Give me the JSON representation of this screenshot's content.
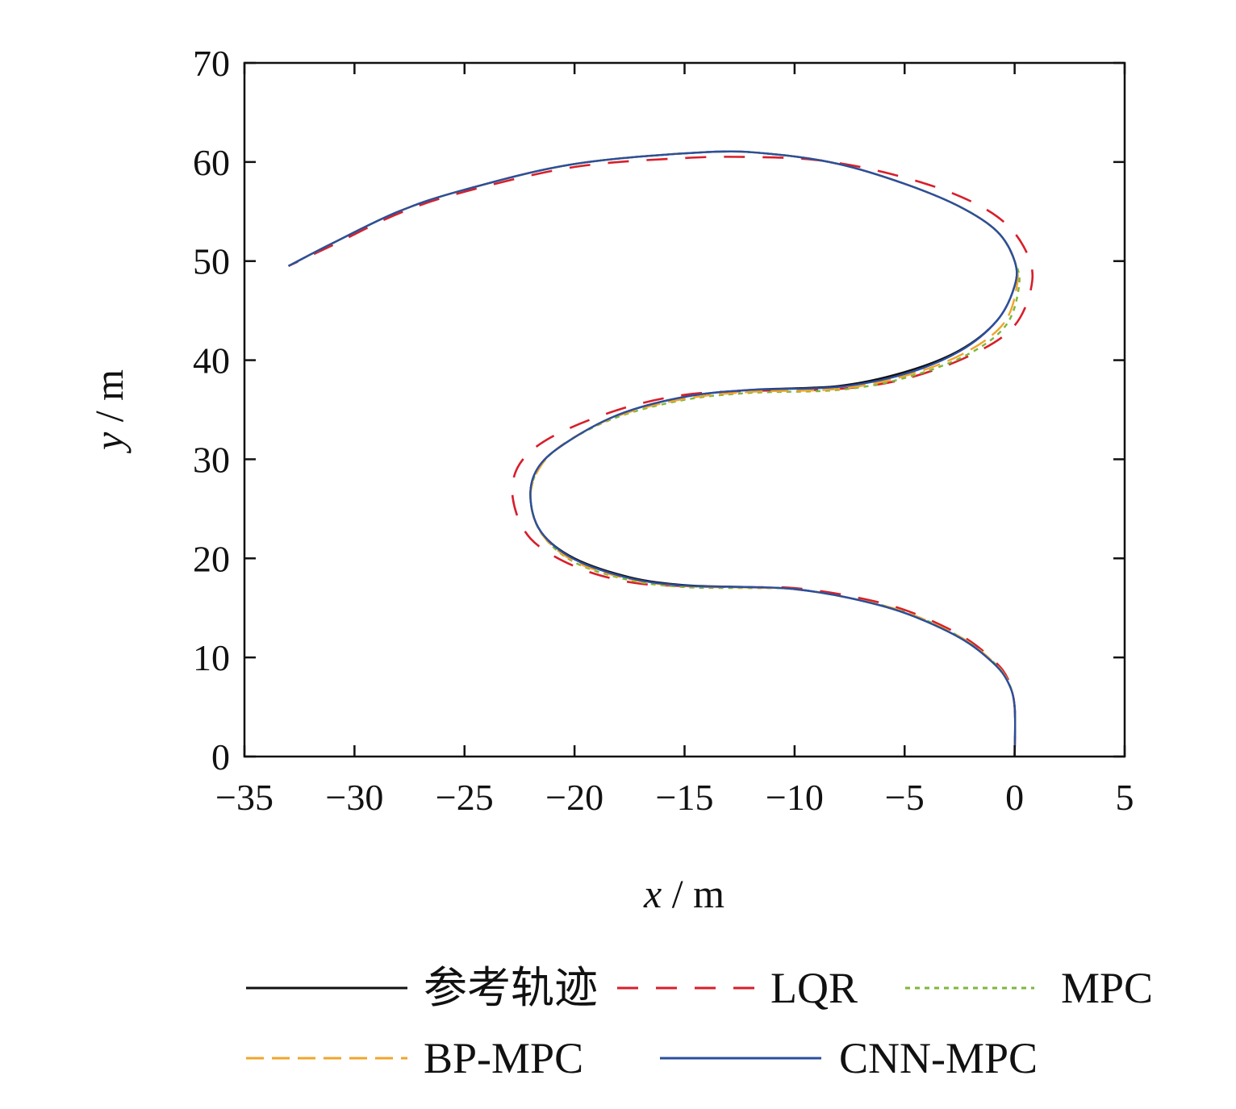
{
  "chart_data": {
    "type": "line",
    "title": "",
    "xlabel_var": "x",
    "xlabel_unit": " / m",
    "ylabel_var": "y",
    "ylabel_unit": " / m",
    "xlim": [
      -35,
      5
    ],
    "ylim": [
      0,
      70
    ],
    "xticks": [
      -35,
      -30,
      -25,
      -20,
      -15,
      -10,
      -5,
      0,
      5
    ],
    "xtick_labels": [
      "−35",
      "−30",
      "−25",
      "−20",
      "−15",
      "−10",
      "−5",
      "0",
      "5"
    ],
    "yticks": [
      0,
      10,
      20,
      30,
      40,
      50,
      60,
      70
    ],
    "ytick_labels": [
      "0",
      "10",
      "20",
      "30",
      "40",
      "50",
      "60",
      "70"
    ],
    "grid": false,
    "legend_position": "bottom",
    "series": [
      {
        "name": "参考轨迹",
        "color": "#111111",
        "dash": "",
        "points": [
          [
            0,
            0
          ],
          [
            0,
            5
          ],
          [
            -0.3,
            7.5
          ],
          [
            -1,
            9.5
          ],
          [
            -2.5,
            12
          ],
          [
            -5,
            14.5
          ],
          [
            -7.5,
            16
          ],
          [
            -10,
            16.9
          ],
          [
            -12,
            17.1
          ],
          [
            -15,
            17.3
          ],
          [
            -17.5,
            18.1
          ],
          [
            -20,
            20
          ],
          [
            -21.5,
            22.6
          ],
          [
            -22,
            26
          ],
          [
            -21.7,
            29
          ],
          [
            -20.5,
            31.5
          ],
          [
            -18,
            34.5
          ],
          [
            -15,
            36.3
          ],
          [
            -12,
            37
          ],
          [
            -8,
            37.4
          ],
          [
            -5,
            38.8
          ],
          [
            -2.5,
            41
          ],
          [
            -0.8,
            44
          ],
          [
            0,
            47.5
          ],
          [
            0,
            50
          ],
          [
            -0.8,
            53
          ],
          [
            -2.5,
            55.5
          ],
          [
            -5,
            57.8
          ],
          [
            -8,
            59.8
          ],
          [
            -11,
            60.8
          ],
          [
            -14,
            61
          ],
          [
            -20,
            59.8
          ],
          [
            -25,
            57.2
          ],
          [
            -28,
            55
          ],
          [
            -31,
            51.8
          ],
          [
            -33,
            49.5
          ]
        ]
      },
      {
        "name": "LQR",
        "color": "#d81e2a",
        "dash": "26,22",
        "points": [
          [
            0,
            0
          ],
          [
            0,
            5
          ],
          [
            -0.3,
            7.8
          ],
          [
            -1,
            9.8
          ],
          [
            -2.5,
            12.3
          ],
          [
            -5,
            14.8
          ],
          [
            -7.5,
            16.2
          ],
          [
            -10,
            17
          ],
          [
            -12,
            17.1
          ],
          [
            -15,
            17.2
          ],
          [
            -17.5,
            17.6
          ],
          [
            -20,
            19.2
          ],
          [
            -22,
            22
          ],
          [
            -22.8,
            26
          ],
          [
            -22.5,
            29.5
          ],
          [
            -21,
            32.3
          ],
          [
            -18,
            35
          ],
          [
            -15,
            36.5
          ],
          [
            -12,
            36.9
          ],
          [
            -8,
            37.1
          ],
          [
            -5,
            38.1
          ],
          [
            -2,
            40.5
          ],
          [
            0,
            43.5
          ],
          [
            0.8,
            48
          ],
          [
            0.4,
            51.5
          ],
          [
            -0.8,
            54.5
          ],
          [
            -3,
            57
          ],
          [
            -6,
            59
          ],
          [
            -9,
            60.2
          ],
          [
            -12,
            60.5
          ],
          [
            -15,
            60.4
          ],
          [
            -20,
            59.5
          ],
          [
            -25,
            57
          ],
          [
            -28,
            54.8
          ],
          [
            -31,
            51.6
          ],
          [
            -33,
            49.5
          ]
        ]
      },
      {
        "name": "MPC",
        "color": "#7cb73a",
        "dash": "6,6",
        "points": [
          [
            0,
            0
          ],
          [
            0,
            5
          ],
          [
            -0.3,
            7.6
          ],
          [
            -1,
            9.6
          ],
          [
            -2.5,
            12.1
          ],
          [
            -5,
            14.6
          ],
          [
            -7.5,
            16
          ],
          [
            -10,
            16.9
          ],
          [
            -12,
            17
          ],
          [
            -15,
            17.1
          ],
          [
            -17.5,
            17.8
          ],
          [
            -20,
            19.6
          ],
          [
            -21.5,
            22.5
          ],
          [
            -22,
            26
          ],
          [
            -21.6,
            29.2
          ],
          [
            -20.3,
            31.8
          ],
          [
            -18,
            34.3
          ],
          [
            -15,
            36
          ],
          [
            -12,
            36.7
          ],
          [
            -8,
            37
          ],
          [
            -5,
            38.2
          ],
          [
            -2.2,
            40.5
          ],
          [
            -0.4,
            43.5
          ],
          [
            0.2,
            47.5
          ],
          [
            0,
            50
          ],
          [
            -0.8,
            53
          ],
          [
            -2.5,
            55.5
          ],
          [
            -5,
            57.8
          ],
          [
            -8,
            59.8
          ],
          [
            -11,
            60.8
          ],
          [
            -14,
            61
          ],
          [
            -20,
            59.8
          ],
          [
            -25,
            57.2
          ],
          [
            -28,
            55
          ],
          [
            -31,
            51.8
          ],
          [
            -33,
            49.5
          ]
        ]
      },
      {
        "name": "BP-MPC",
        "color": "#f0a52a",
        "dash": "22,10",
        "points": [
          [
            0,
            0
          ],
          [
            0,
            5
          ],
          [
            -0.3,
            7.6
          ],
          [
            -1,
            9.6
          ],
          [
            -2.5,
            12.1
          ],
          [
            -5,
            14.6
          ],
          [
            -7.5,
            16
          ],
          [
            -10,
            16.9
          ],
          [
            -12,
            17.05
          ],
          [
            -15,
            17.2
          ],
          [
            -17.5,
            17.9
          ],
          [
            -20,
            19.7
          ],
          [
            -21.5,
            22.5
          ],
          [
            -22,
            26
          ],
          [
            -21.6,
            29.1
          ],
          [
            -20.4,
            31.7
          ],
          [
            -18,
            34.4
          ],
          [
            -15,
            36.1
          ],
          [
            -12,
            36.8
          ],
          [
            -8,
            37.1
          ],
          [
            -5,
            38.4
          ],
          [
            -2.3,
            40.7
          ],
          [
            -0.5,
            43.7
          ],
          [
            0.1,
            47.5
          ],
          [
            0,
            50
          ],
          [
            -0.8,
            53
          ],
          [
            -2.5,
            55.5
          ],
          [
            -5,
            57.8
          ],
          [
            -8,
            59.8
          ],
          [
            -11,
            60.8
          ],
          [
            -14,
            61
          ],
          [
            -20,
            59.8
          ],
          [
            -25,
            57.2
          ],
          [
            -28,
            55
          ],
          [
            -31,
            51.8
          ],
          [
            -33,
            49.5
          ]
        ]
      },
      {
        "name": "CNN-MPC",
        "color": "#2b4f9e",
        "dash": "",
        "points": [
          [
            0,
            0
          ],
          [
            0,
            5
          ],
          [
            -0.3,
            7.5
          ],
          [
            -1,
            9.5
          ],
          [
            -2.5,
            12
          ],
          [
            -5,
            14.5
          ],
          [
            -7.5,
            16
          ],
          [
            -10,
            16.9
          ],
          [
            -12,
            17.1
          ],
          [
            -15,
            17.25
          ],
          [
            -17.5,
            18
          ],
          [
            -20,
            19.9
          ],
          [
            -21.5,
            22.6
          ],
          [
            -22,
            26
          ],
          [
            -21.7,
            29
          ],
          [
            -20.5,
            31.5
          ],
          [
            -18,
            34.5
          ],
          [
            -15,
            36.3
          ],
          [
            -12,
            37
          ],
          [
            -8,
            37.3
          ],
          [
            -5,
            38.6
          ],
          [
            -2.5,
            40.9
          ],
          [
            -0.8,
            44
          ],
          [
            0,
            47.5
          ],
          [
            0,
            50
          ],
          [
            -0.8,
            53
          ],
          [
            -2.5,
            55.5
          ],
          [
            -5,
            57.8
          ],
          [
            -8,
            59.8
          ],
          [
            -11,
            60.8
          ],
          [
            -14,
            61
          ],
          [
            -20,
            59.8
          ],
          [
            -25,
            57.2
          ],
          [
            -28,
            55
          ],
          [
            -31,
            51.8
          ],
          [
            -33,
            49.5
          ]
        ]
      }
    ]
  }
}
